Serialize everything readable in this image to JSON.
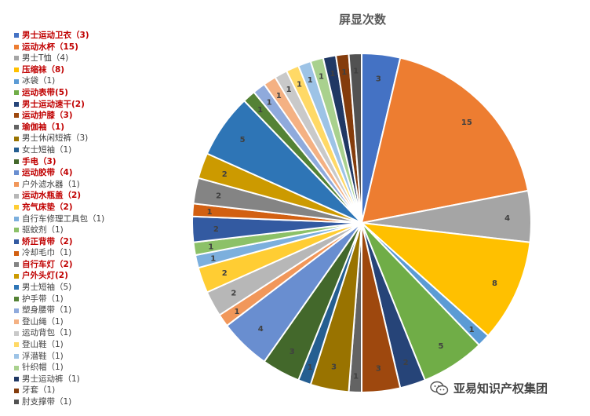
{
  "chart_data": {
    "type": "pie",
    "title": "屏显次数",
    "legend_position": "left",
    "slices": [
      {
        "legend": "男士运动卫衣（3)",
        "value": 3,
        "color": "#4472c4",
        "highlight": true
      },
      {
        "legend": "运动水杯（15)",
        "value": 15,
        "color": "#ed7d31",
        "highlight": true
      },
      {
        "legend": "男士T恤（4)",
        "value": 4,
        "color": "#a5a5a5",
        "highlight": false
      },
      {
        "legend": "压缩袜（8)",
        "value": 8,
        "color": "#ffc000",
        "highlight": true
      },
      {
        "legend": "冰袋（1)",
        "value": 1,
        "color": "#5b9bd5",
        "highlight": false
      },
      {
        "legend": "运动表带(5)",
        "value": 5,
        "color": "#70ad47",
        "highlight": true
      },
      {
        "legend": "男士运动速干(2)",
        "value": 2,
        "color": "#264478",
        "highlight": true
      },
      {
        "legend": "运动护膝（3)",
        "value": 3,
        "color": "#9e480e",
        "highlight": true
      },
      {
        "legend": "瑜伽袖（1)",
        "value": 1,
        "color": "#636363",
        "highlight": true
      },
      {
        "legend": "男士休闲短裤（3)",
        "value": 3,
        "color": "#997300",
        "highlight": false
      },
      {
        "legend": "女士短袖（1)",
        "value": 1,
        "color": "#255e91",
        "highlight": false
      },
      {
        "legend": "手电（3)",
        "value": 3,
        "color": "#43682b",
        "highlight": true
      },
      {
        "legend": "运动胶带（4)",
        "value": 4,
        "color": "#698ed0",
        "highlight": true
      },
      {
        "legend": "户外滤水器（1)",
        "value": 1,
        "color": "#f1975a",
        "highlight": false
      },
      {
        "legend": "运动水瓶盖（2)",
        "value": 2,
        "color": "#b7b7b7",
        "highlight": true
      },
      {
        "legend": "充气床垫（2)",
        "value": 2,
        "color": "#ffcd33",
        "highlight": true
      },
      {
        "legend": "自行车修理工具包（1)",
        "value": 1,
        "color": "#7cafdd",
        "highlight": false
      },
      {
        "legend": "驱蚊剂（1)",
        "value": 1,
        "color": "#8cc168",
        "highlight": false
      },
      {
        "legend": "矫正背带（2)",
        "value": 2,
        "color": "#335aa1",
        "highlight": true
      },
      {
        "legend": "冷却毛巾（1)",
        "value": 1,
        "color": "#d26012",
        "highlight": false
      },
      {
        "legend": "自行车灯（2)",
        "value": 2,
        "color": "#848484",
        "highlight": true
      },
      {
        "legend": "户外头灯(2)",
        "value": 2,
        "color": "#cc9a00",
        "highlight": true
      },
      {
        "legend": "男士短袖（5)",
        "value": 5,
        "color": "#2e75b6",
        "highlight": false
      },
      {
        "legend": "护手带（1)",
        "value": 1,
        "color": "#548235",
        "highlight": false
      },
      {
        "legend": "塑身腰带（1)",
        "value": 1,
        "color": "#8faadc",
        "highlight": false
      },
      {
        "legend": "登山绳（1)",
        "value": 1,
        "color": "#f4b183",
        "highlight": false
      },
      {
        "legend": "运动背包（1)",
        "value": 1,
        "color": "#c9c9c9",
        "highlight": false
      },
      {
        "legend": "登山鞋（1)",
        "value": 1,
        "color": "#ffd966",
        "highlight": false
      },
      {
        "legend": "浮潜鞋（1)",
        "value": 1,
        "color": "#9dc3e6",
        "highlight": false
      },
      {
        "legend": "针织帽（1)",
        "value": 1,
        "color": "#a9d18e",
        "highlight": false
      },
      {
        "legend": "男士运动裤（1)",
        "value": 1,
        "color": "#203864",
        "highlight": false
      },
      {
        "legend": "牙套（1)",
        "value": 1,
        "color": "#843c0c",
        "highlight": false
      },
      {
        "legend": "肘支撑带（1)",
        "value": 1,
        "color": "#525252",
        "highlight": false
      }
    ]
  },
  "watermark": {
    "text": "亚易知识产权集团",
    "icon": "wechat-icon"
  }
}
